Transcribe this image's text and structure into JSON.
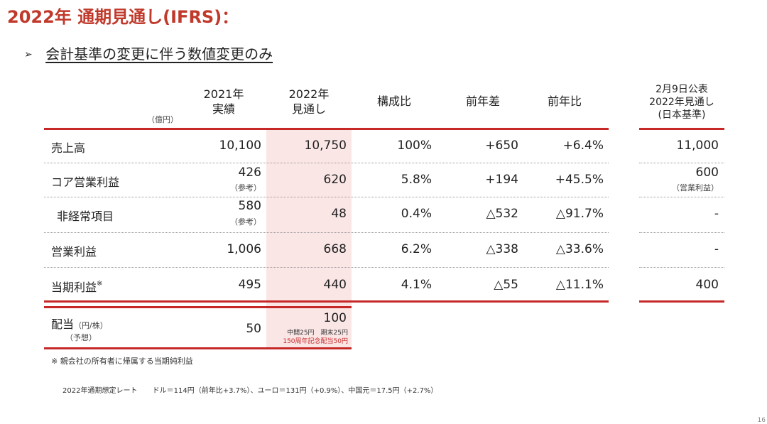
{
  "title": "2022年 通期見通し(IFRS)：",
  "subtitle": "会計基準の変更に伴う数値変更のみ",
  "subtitle_bullet": "➢",
  "unit": "（億円）",
  "headers": {
    "actual_2021_year": "2021年",
    "actual_2021_label": "実績",
    "forecast_2022_year": "2022年",
    "forecast_2022_label": "見通し",
    "composition": "構成比",
    "yoy_diff": "前年差",
    "yoy_ratio": "前年比",
    "jgaap_line1": "2月9日公表",
    "jgaap_line2": "2022年見通し",
    "jgaap_line3": "(日本基準)"
  },
  "rows": [
    {
      "label": "売上高",
      "actual": "10,100",
      "actual_note": "",
      "forecast": "10,750",
      "ratio": "100%",
      "diff": "+650",
      "yoy": "+6.4%",
      "jgaap": "11,000",
      "jgaap_note": ""
    },
    {
      "label": "コア営業利益",
      "actual": "426",
      "actual_note": "（参考）",
      "forecast": "620",
      "ratio": "5.8%",
      "diff": "+194",
      "yoy": "+45.5%",
      "jgaap": "600",
      "jgaap_note": "（営業利益）"
    },
    {
      "label": "非経常項目",
      "actual": "580",
      "actual_note": "（参考）",
      "forecast": "48",
      "ratio": "0.4%",
      "diff": "△532",
      "yoy": "△91.7%",
      "jgaap": "-",
      "jgaap_note": ""
    },
    {
      "label": "営業利益",
      "actual": "1,006",
      "actual_note": "",
      "forecast": "668",
      "ratio": "6.2%",
      "diff": "△338",
      "yoy": "△33.6%",
      "jgaap": "-",
      "jgaap_note": ""
    },
    {
      "label": "当期利益",
      "label_mark": "※",
      "actual": "495",
      "actual_note": "",
      "forecast": "440",
      "ratio": "4.1%",
      "diff": "△55",
      "yoy": "△11.1%",
      "jgaap": "400",
      "jgaap_note": ""
    }
  ],
  "dividend": {
    "label": "配当",
    "unit": "（円/株）",
    "sub": "（予想）",
    "actual": "50",
    "forecast": "100",
    "forecast_note1": "中間25円　期末25円",
    "forecast_note2": "150周年記念配当50円"
  },
  "footnote": "※ 親会社の所有者に帰属する当期純利益",
  "rate_label": "2022年通期想定レート",
  "rate_text": "ドル＝114円（前年比+3.7%）、ユーロ＝131円（+0.9%）、中国元＝17.5円（+2.7%）",
  "page_number": "16",
  "colors": {
    "title": "#c0392b",
    "rule": "#c62828",
    "highlight": "#fbe6e6"
  }
}
